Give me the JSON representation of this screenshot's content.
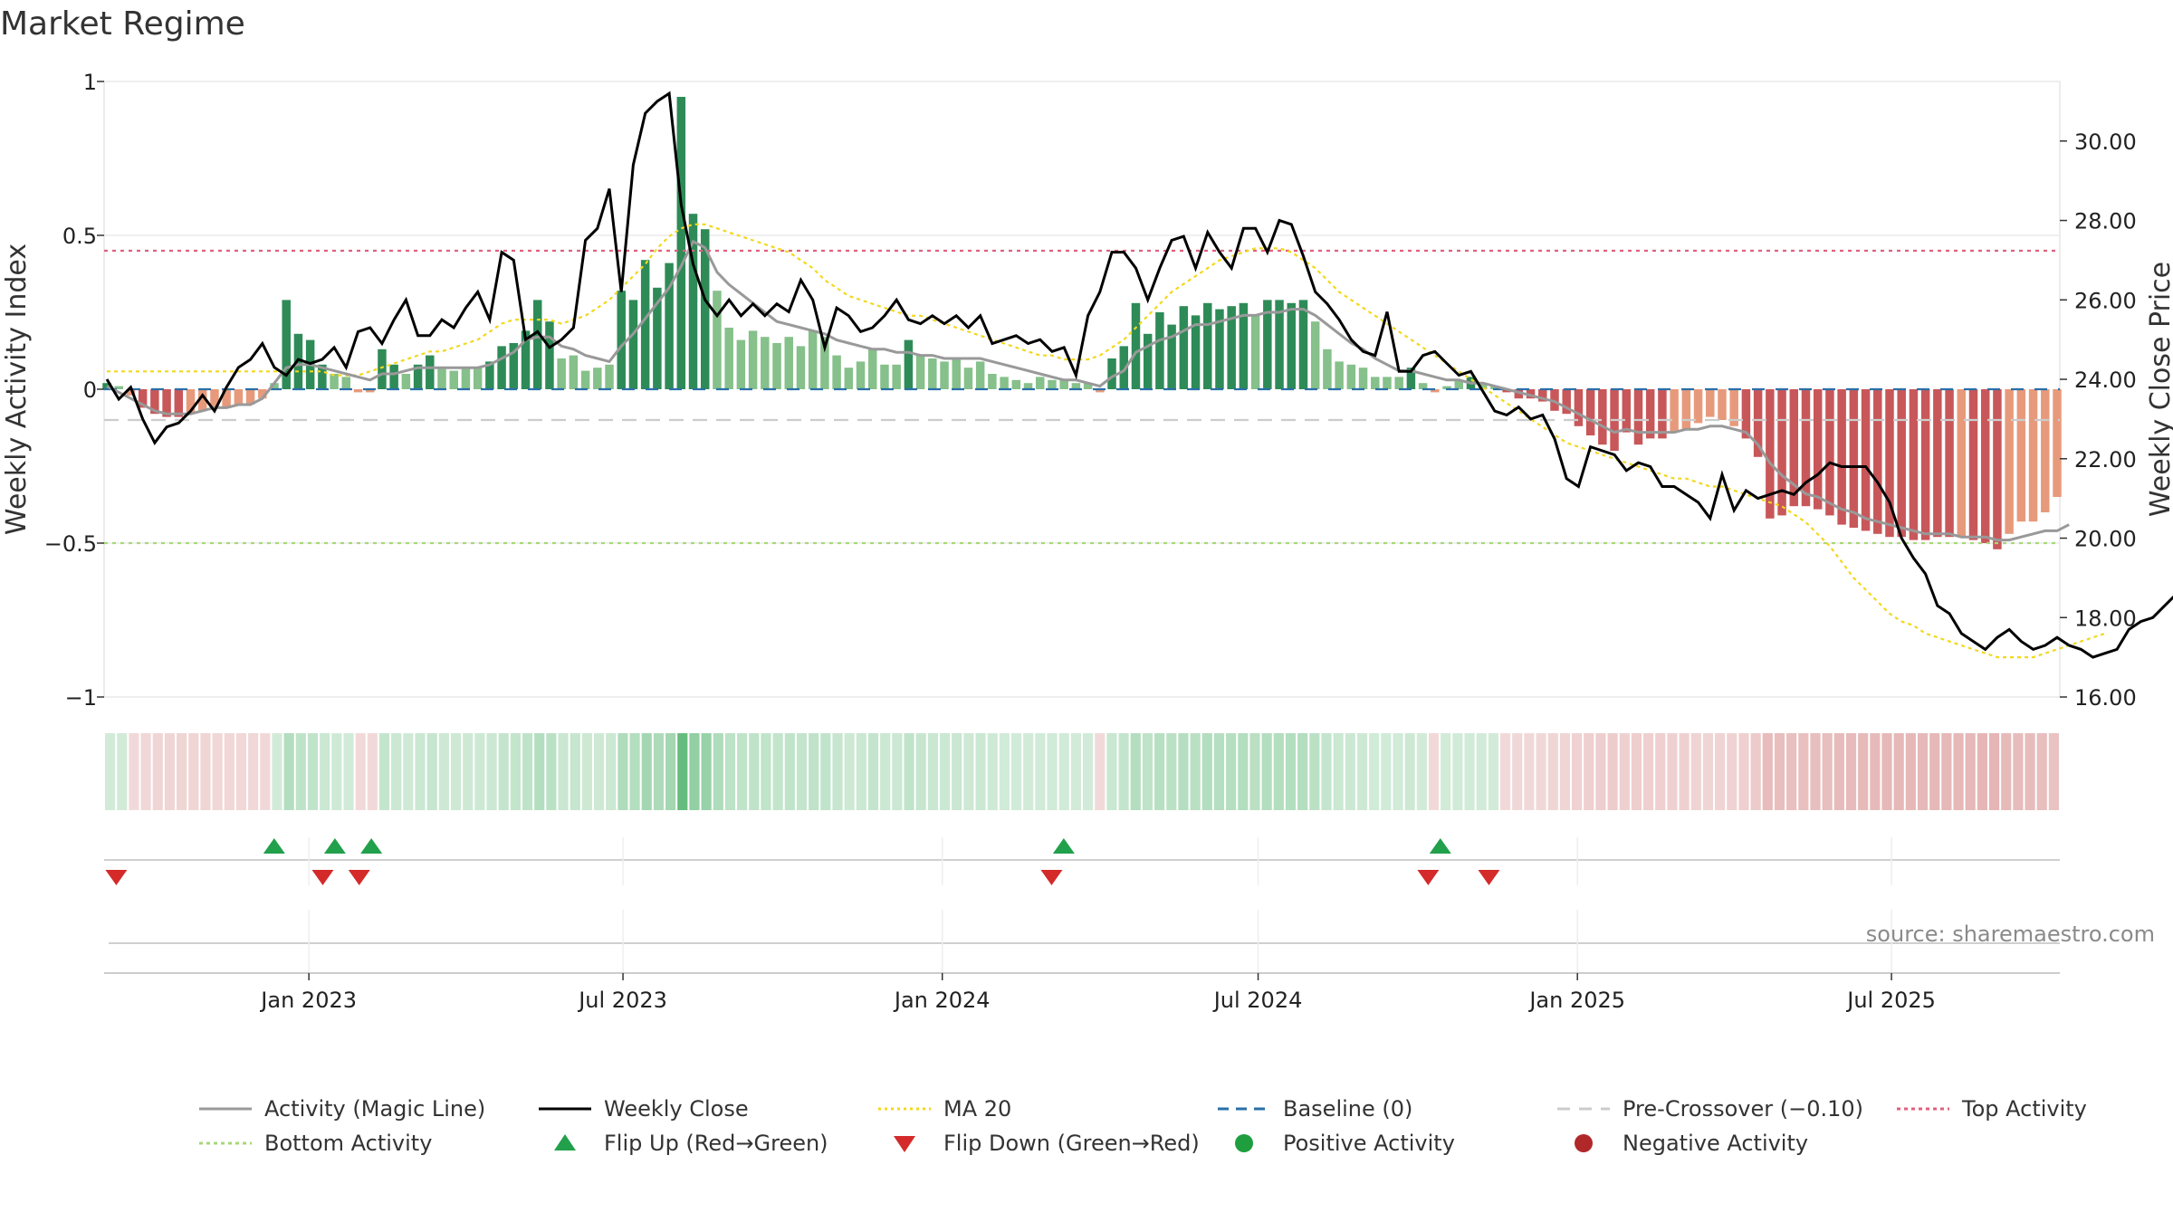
{
  "chart_data": {
    "type": "bar",
    "title": "Market Regime",
    "ylabel": "Weekly Activity Index",
    "y2label": "Weekly Close Price",
    "ylim": [
      -1,
      1
    ],
    "y2lim": [
      16,
      31.5
    ],
    "yticks": [
      "−1",
      "−0.5",
      "0",
      "0.5",
      "1"
    ],
    "yticks_values": [
      -1,
      -0.5,
      0,
      0.5,
      1
    ],
    "y2ticks": [
      "16.00",
      "18.00",
      "20.00",
      "22.00",
      "24.00",
      "26.00",
      "28.00",
      "30.00"
    ],
    "y2ticks_values": [
      16,
      18,
      20,
      22,
      24,
      26,
      28,
      30
    ],
    "x_start": "2022-09-05",
    "x_end": "2025-10-06",
    "xticks": [
      "Jan 2023",
      "Jul 2023",
      "Jan 2024",
      "Jul 2024",
      "Jan 2025",
      "Jul 2025"
    ],
    "xticks_dates": [
      "2023-01-01",
      "2023-07-01",
      "2024-01-01",
      "2024-07-01",
      "2025-01-01",
      "2025-07-01"
    ],
    "levels": {
      "top": 0.45,
      "bottom": -0.5,
      "baseline": 0,
      "pre_crossover": -0.1
    },
    "activity_index": [
      0.02,
      0.01,
      -0.02,
      -0.06,
      -0.08,
      -0.09,
      -0.09,
      -0.08,
      -0.07,
      -0.06,
      -0.06,
      -0.05,
      -0.05,
      -0.03,
      0.02,
      0.29,
      0.18,
      0.16,
      0.08,
      0.05,
      0.04,
      -0.01,
      -0.01,
      0.13,
      0.08,
      0.05,
      0.08,
      0.11,
      0.07,
      0.06,
      0.07,
      0.07,
      0.09,
      0.14,
      0.15,
      0.19,
      0.29,
      0.22,
      0.1,
      0.11,
      0.06,
      0.07,
      0.08,
      0.32,
      0.29,
      0.42,
      0.33,
      0.41,
      0.95,
      0.57,
      0.52,
      0.32,
      0.2,
      0.16,
      0.19,
      0.17,
      0.15,
      0.17,
      0.14,
      0.19,
      0.17,
      0.11,
      0.07,
      0.09,
      0.13,
      0.08,
      0.08,
      0.16,
      0.11,
      0.1,
      0.09,
      0.1,
      0.07,
      0.09,
      0.05,
      0.04,
      0.03,
      0.02,
      0.04,
      0.03,
      0.03,
      0.02,
      0.02,
      -0.01,
      0.1,
      0.14,
      0.28,
      0.18,
      0.25,
      0.21,
      0.27,
      0.24,
      0.28,
      0.26,
      0.27,
      0.28,
      0.24,
      0.29,
      0.29,
      0.28,
      0.29,
      0.22,
      0.13,
      0.09,
      0.08,
      0.07,
      0.04,
      0.04,
      0.04,
      0.07,
      0.02,
      -0.01,
      0.01,
      0.03,
      0.04,
      0.02,
      0.01,
      -0.01,
      -0.03,
      -0.03,
      -0.04,
      -0.07,
      -0.08,
      -0.12,
      -0.15,
      -0.18,
      -0.2,
      -0.14,
      -0.18,
      -0.16,
      -0.16,
      -0.14,
      -0.13,
      -0.11,
      -0.09,
      -0.1,
      -0.12,
      -0.16,
      -0.22,
      -0.42,
      -0.41,
      -0.38,
      -0.38,
      -0.39,
      -0.41,
      -0.44,
      -0.45,
      -0.46,
      -0.47,
      -0.48,
      -0.48,
      -0.49,
      -0.49,
      -0.48,
      -0.48,
      -0.48,
      -0.49,
      -0.5,
      -0.52,
      -0.47,
      -0.43,
      -0.43,
      -0.4,
      -0.35
    ],
    "magic_line": [
      0.01,
      -0.01,
      -0.03,
      -0.05,
      -0.07,
      -0.08,
      -0.08,
      -0.08,
      -0.07,
      -0.06,
      -0.06,
      -0.05,
      -0.05,
      -0.03,
      0.02,
      0.07,
      0.08,
      0.08,
      0.07,
      0.06,
      0.05,
      0.04,
      0.03,
      0.05,
      0.05,
      0.06,
      0.07,
      0.07,
      0.07,
      0.07,
      0.07,
      0.07,
      0.08,
      0.1,
      0.12,
      0.16,
      0.17,
      0.17,
      0.14,
      0.13,
      0.11,
      0.1,
      0.09,
      0.14,
      0.18,
      0.23,
      0.28,
      0.33,
      0.4,
      0.48,
      0.46,
      0.38,
      0.34,
      0.31,
      0.28,
      0.25,
      0.22,
      0.21,
      0.2,
      0.19,
      0.18,
      0.16,
      0.15,
      0.14,
      0.13,
      0.13,
      0.12,
      0.12,
      0.11,
      0.11,
      0.1,
      0.1,
      0.1,
      0.1,
      0.09,
      0.08,
      0.07,
      0.06,
      0.05,
      0.04,
      0.03,
      0.03,
      0.02,
      0.01,
      0.04,
      0.06,
      0.12,
      0.14,
      0.16,
      0.17,
      0.19,
      0.21,
      0.21,
      0.22,
      0.23,
      0.24,
      0.24,
      0.25,
      0.25,
      0.26,
      0.26,
      0.24,
      0.21,
      0.18,
      0.15,
      0.13,
      0.1,
      0.08,
      0.06,
      0.06,
      0.05,
      0.04,
      0.03,
      0.03,
      0.02,
      0.02,
      0.01,
      0.0,
      -0.01,
      -0.02,
      -0.03,
      -0.04,
      -0.06,
      -0.08,
      -0.1,
      -0.12,
      -0.14,
      -0.13,
      -0.14,
      -0.14,
      -0.14,
      -0.14,
      -0.13,
      -0.13,
      -0.12,
      -0.12,
      -0.13,
      -0.14,
      -0.18,
      -0.24,
      -0.28,
      -0.31,
      -0.34,
      -0.35,
      -0.37,
      -0.39,
      -0.4,
      -0.42,
      -0.43,
      -0.44,
      -0.45,
      -0.46,
      -0.47,
      -0.47,
      -0.47,
      -0.48,
      -0.48,
      -0.48,
      -0.49,
      -0.49,
      -0.48,
      -0.47,
      -0.46,
      -0.46,
      -0.44
    ],
    "weekly_close": [
      24.0,
      23.5,
      23.8,
      23.0,
      22.4,
      22.8,
      22.9,
      23.2,
      23.6,
      23.2,
      23.8,
      24.3,
      24.5,
      24.9,
      24.3,
      24.1,
      24.5,
      24.4,
      24.5,
      24.8,
      24.3,
      25.2,
      25.3,
      24.9,
      25.5,
      26.0,
      25.1,
      25.1,
      25.5,
      25.3,
      25.8,
      26.2,
      25.5,
      27.2,
      27.0,
      25.0,
      25.2,
      24.8,
      25.0,
      25.3,
      27.5,
      27.8,
      28.8,
      26.2,
      29.4,
      30.7,
      31.0,
      31.2,
      28.4,
      26.9,
      26.0,
      25.6,
      26.0,
      25.6,
      25.9,
      25.6,
      25.9,
      25.7,
      26.5,
      26.0,
      24.8,
      25.8,
      25.6,
      25.2,
      25.3,
      25.6,
      26.0,
      25.5,
      25.4,
      25.6,
      25.4,
      25.6,
      25.3,
      25.6,
      24.9,
      25.0,
      25.1,
      24.9,
      25.0,
      24.7,
      24.8,
      24.1,
      25.6,
      26.2,
      27.2,
      27.2,
      26.8,
      26.0,
      26.8,
      27.5,
      27.6,
      26.8,
      27.7,
      27.2,
      26.8,
      27.8,
      27.8,
      27.2,
      28.0,
      27.9,
      27.1,
      26.2,
      25.9,
      25.5,
      25.0,
      24.7,
      24.6,
      25.7,
      24.2,
      24.2,
      24.6,
      24.7,
      24.4,
      24.1,
      24.2,
      23.7,
      23.2,
      23.1,
      23.3,
      23.0,
      23.1,
      22.5,
      21.5,
      21.3,
      22.3,
      22.2,
      22.1,
      21.7,
      21.9,
      21.8,
      21.3,
      21.3,
      21.1,
      20.9,
      20.5,
      21.6,
      20.7,
      21.2,
      21.0,
      21.1,
      21.2,
      21.1,
      21.4,
      21.6,
      21.9,
      21.8,
      21.8,
      21.8,
      21.4,
      20.9,
      20.0,
      19.5,
      19.1,
      18.3,
      18.1,
      17.6,
      17.4,
      17.2,
      17.5,
      17.7,
      17.4,
      17.2,
      17.3,
      17.5,
      17.3,
      17.2,
      17.0,
      17.1,
      17.2,
      17.7,
      17.9,
      18.0,
      18.3,
      18.6,
      18.8,
      19.1,
      19.3
    ],
    "ma20": [
      24.2,
      24.2,
      24.2,
      24.2,
      24.2,
      24.2,
      24.2,
      24.2,
      24.2,
      24.2,
      24.2,
      24.2,
      24.2,
      24.2,
      24.2,
      24.2,
      24.2,
      24.2,
      24.2,
      24.1,
      24.1,
      24.1,
      24.2,
      24.3,
      24.4,
      24.5,
      24.6,
      24.7,
      24.7,
      24.8,
      24.9,
      25.0,
      25.2,
      25.4,
      25.5,
      25.5,
      25.5,
      25.5,
      25.4,
      25.5,
      25.6,
      25.8,
      26.0,
      26.3,
      26.6,
      26.9,
      27.3,
      27.6,
      27.8,
      27.9,
      27.9,
      27.8,
      27.7,
      27.6,
      27.5,
      27.4,
      27.3,
      27.2,
      27.0,
      26.8,
      26.5,
      26.3,
      26.1,
      26.0,
      25.9,
      25.8,
      25.7,
      25.6,
      25.6,
      25.5,
      25.4,
      25.3,
      25.2,
      25.1,
      25.0,
      24.9,
      24.8,
      24.7,
      24.6,
      24.6,
      24.5,
      24.5,
      24.5,
      24.6,
      24.8,
      25.0,
      25.3,
      25.6,
      25.9,
      26.2,
      26.4,
      26.6,
      26.8,
      27.0,
      27.1,
      27.2,
      27.3,
      27.3,
      27.3,
      27.2,
      27.0,
      26.8,
      26.5,
      26.2,
      26.0,
      25.8,
      25.6,
      25.4,
      25.2,
      25.0,
      24.8,
      24.6,
      24.4,
      24.2,
      24.0,
      23.8,
      23.6,
      23.4,
      23.2,
      23.0,
      22.8,
      22.6,
      22.4,
      22.3,
      22.2,
      22.1,
      22.0,
      21.9,
      21.8,
      21.7,
      21.6,
      21.5,
      21.5,
      21.4,
      21.3,
      21.3,
      21.2,
      21.1,
      21.0,
      20.9,
      20.8,
      20.6,
      20.4,
      20.1,
      19.8,
      19.4,
      19.0,
      18.7,
      18.4,
      18.1,
      17.9,
      17.8,
      17.6,
      17.5,
      17.4,
      17.3,
      17.2,
      17.1,
      17.0,
      17.0,
      17.0,
      17.0,
      17.1,
      17.2,
      17.3,
      17.4,
      17.5,
      17.6
    ],
    "flip_up_dates": [
      "2022-12-12",
      "2023-01-16",
      "2023-02-06",
      "2024-03-11",
      "2024-10-14"
    ],
    "flip_down_dates": [
      "2022-09-12",
      "2023-01-09",
      "2023-01-30",
      "2024-03-04",
      "2024-10-07",
      "2024-11-11"
    ],
    "legend": [
      {
        "label": "Activity (Magic Line)",
        "kind": "line",
        "color": "#999999",
        "dash": ""
      },
      {
        "label": "Weekly Close",
        "kind": "line",
        "color": "#000000",
        "dash": ""
      },
      {
        "label": "MA 20",
        "kind": "line",
        "color": "#f2d81d",
        "dash": "3 4"
      },
      {
        "label": "Baseline (0)",
        "kind": "line",
        "color": "#2a6fa8",
        "dash": "12 8"
      },
      {
        "label": "Pre-Crossover (−0.10)",
        "kind": "line",
        "color": "#cccccc",
        "dash": "14 10"
      },
      {
        "label": "Top Activity",
        "kind": "line",
        "color": "#e0607e",
        "dash": "4 4"
      },
      {
        "label": "Bottom Activity",
        "kind": "line",
        "color": "#a8d878",
        "dash": "4 4"
      },
      {
        "label": "Flip Up (Red→Green)",
        "kind": "tri-up",
        "color": "#22a04b"
      },
      {
        "label": "Flip Down (Green→Red)",
        "kind": "tri-down",
        "color": "#d42a2a"
      },
      {
        "label": "Positive Activity",
        "kind": "dot",
        "color": "#1e9e3e"
      },
      {
        "label": "Negative Activity",
        "kind": "dot",
        "color": "#b0282a"
      }
    ],
    "source": "source: sharemaestro.com"
  },
  "colors": {
    "pos_strong": "#2e8b57",
    "pos_light": "#86c08a",
    "neg_strong": "#c8575a",
    "neg_light": "#e79a7b"
  }
}
